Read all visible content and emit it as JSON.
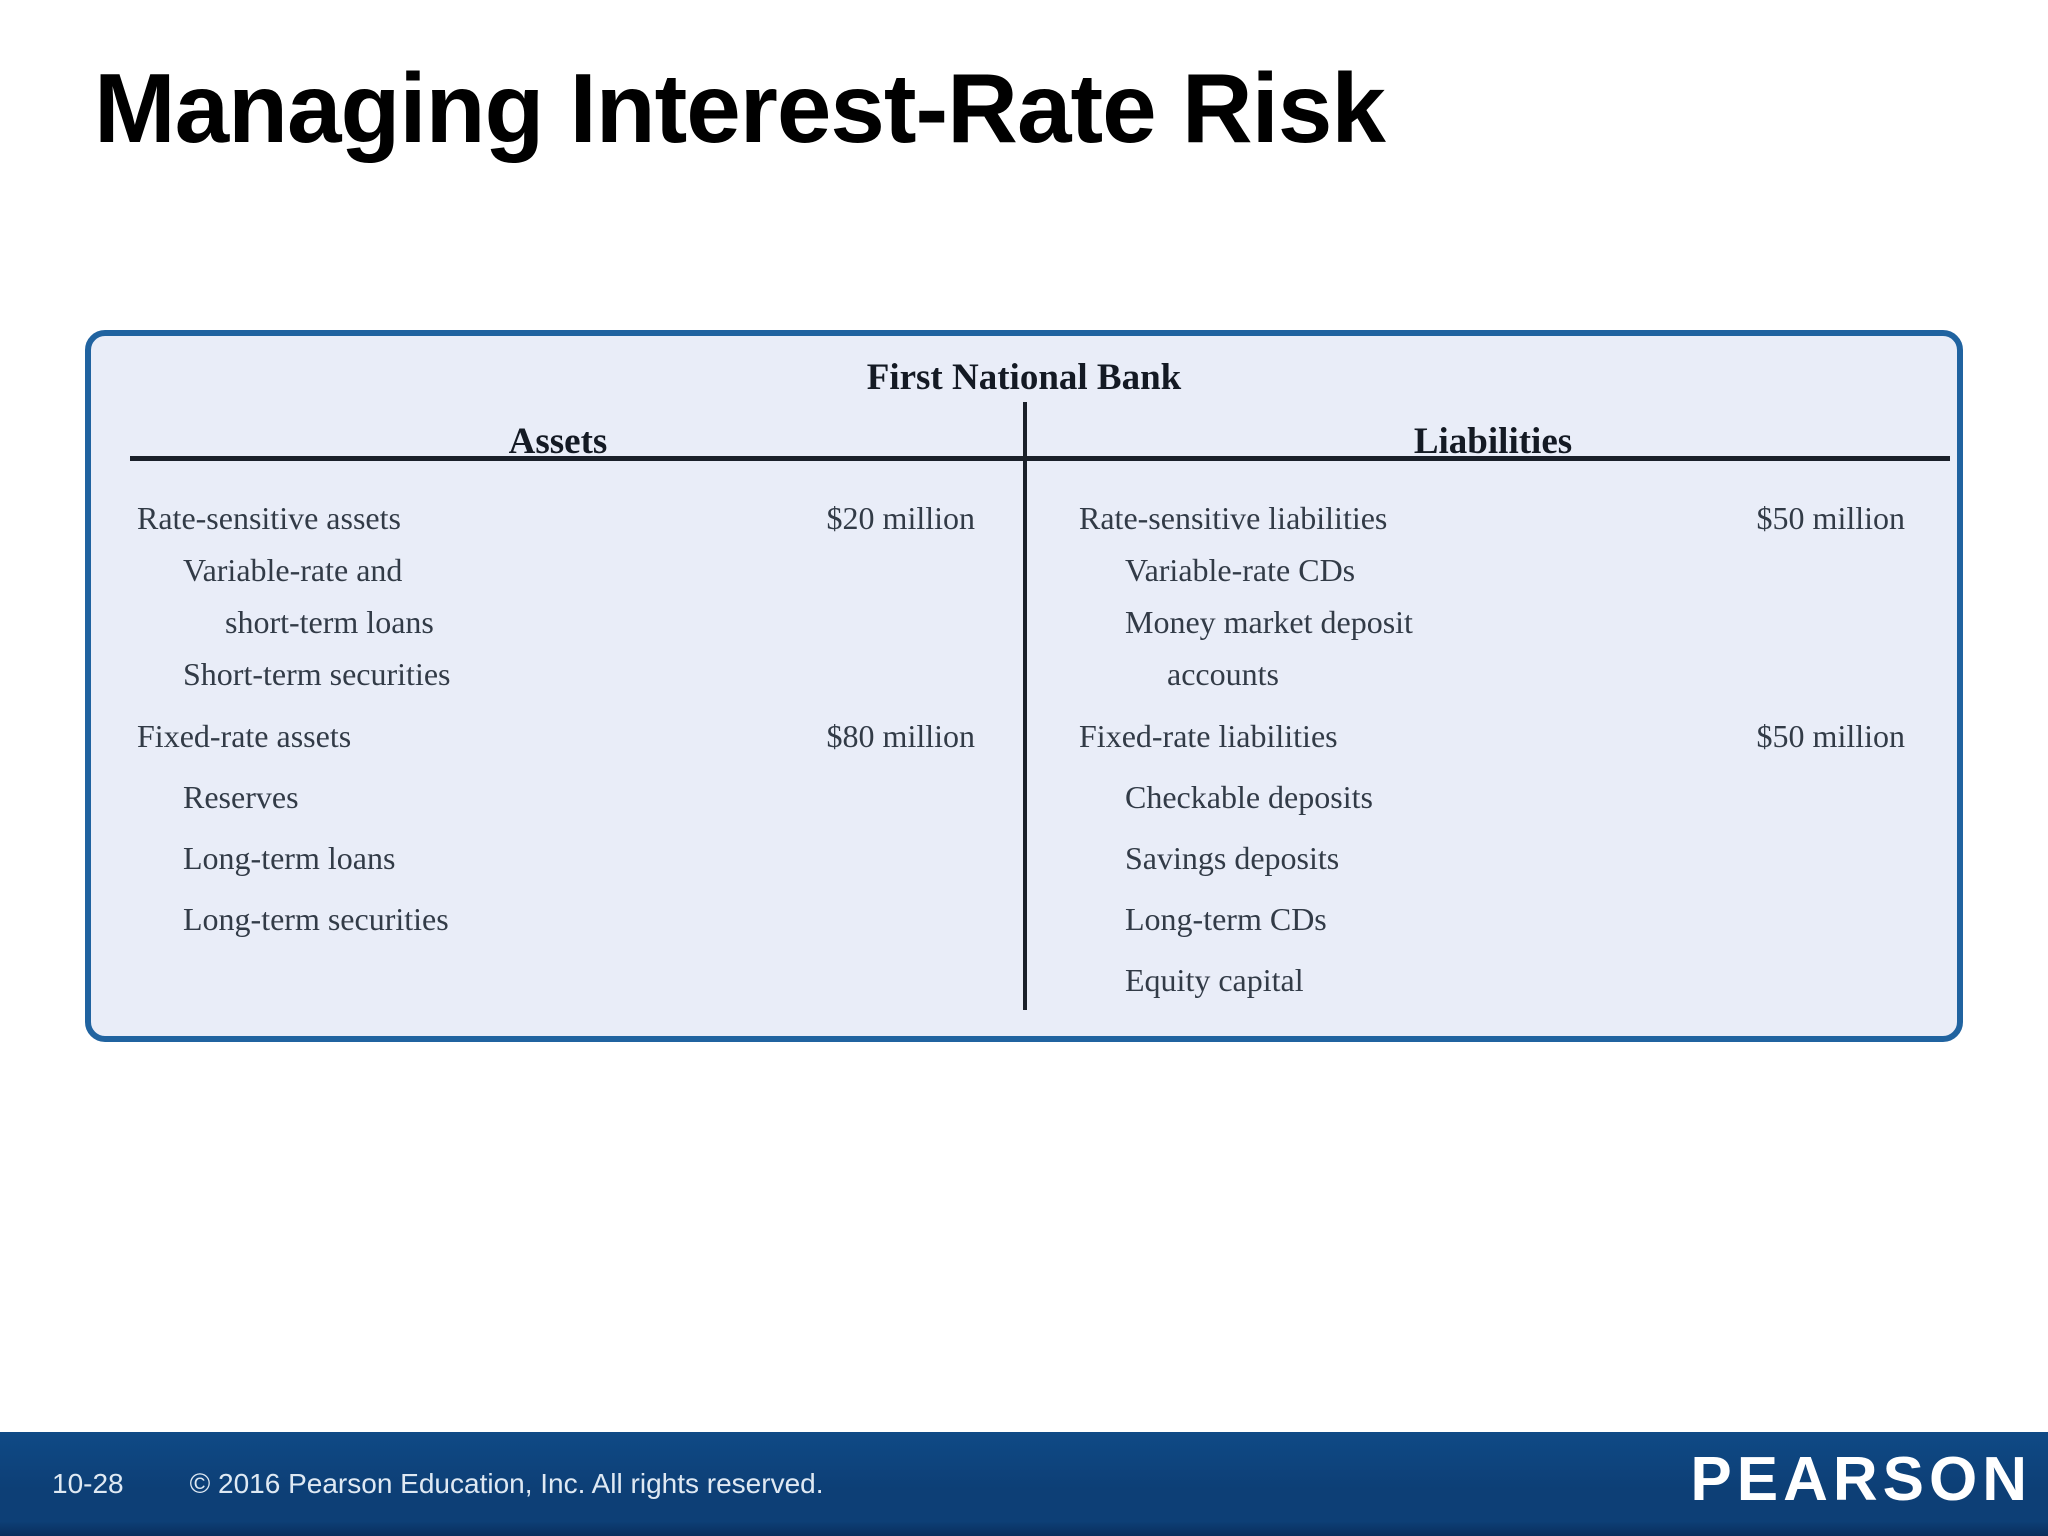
{
  "slide": {
    "title": "Managing Interest-Rate Risk"
  },
  "balance_sheet": {
    "title": "First National Bank",
    "columns": [
      {
        "header": "Assets",
        "rows": [
          {
            "label": "Rate-sensitive assets",
            "value": "$20 million",
            "indent": 0
          },
          {
            "label": "Variable-rate and",
            "value": "",
            "indent": 1
          },
          {
            "label": "short-term loans",
            "value": "",
            "indent": 2
          },
          {
            "label": "Short-term securities",
            "value": "",
            "indent": 1
          },
          {
            "label": "Fixed-rate assets",
            "value": "$80 million",
            "indent": 0
          },
          {
            "label": "Reserves",
            "value": "",
            "indent": 1
          },
          {
            "label": "Long-term loans",
            "value": "",
            "indent": 1
          },
          {
            "label": "Long-term securities",
            "value": "",
            "indent": 1
          }
        ]
      },
      {
        "header": "Liabilities",
        "rows": [
          {
            "label": "Rate-sensitive liabilities",
            "value": "$50 million",
            "indent": 0
          },
          {
            "label": "Variable-rate CDs",
            "value": "",
            "indent": 1
          },
          {
            "label": "Money market deposit",
            "value": "",
            "indent": 1
          },
          {
            "label": "accounts",
            "value": "",
            "indent": 2
          },
          {
            "label": "Fixed-rate liabilities",
            "value": "$50 million",
            "indent": 0
          },
          {
            "label": "Checkable deposits",
            "value": "",
            "indent": 1
          },
          {
            "label": "Savings deposits",
            "value": "",
            "indent": 1
          },
          {
            "label": "Long-term CDs",
            "value": "",
            "indent": 1
          },
          {
            "label": "Equity capital",
            "value": "",
            "indent": 1
          }
        ]
      }
    ]
  },
  "footer": {
    "page": "10-28",
    "copyright": "© 2016 Pearson Education, Inc. All rights reserved.",
    "logo": "PEARSON"
  },
  "colors": {
    "sheet_border": "#2063a0",
    "sheet_background": "#e9edf8",
    "rule": "#1a202a",
    "footer_background": "#0d3f76",
    "footer_text": "#dfe9f3"
  }
}
